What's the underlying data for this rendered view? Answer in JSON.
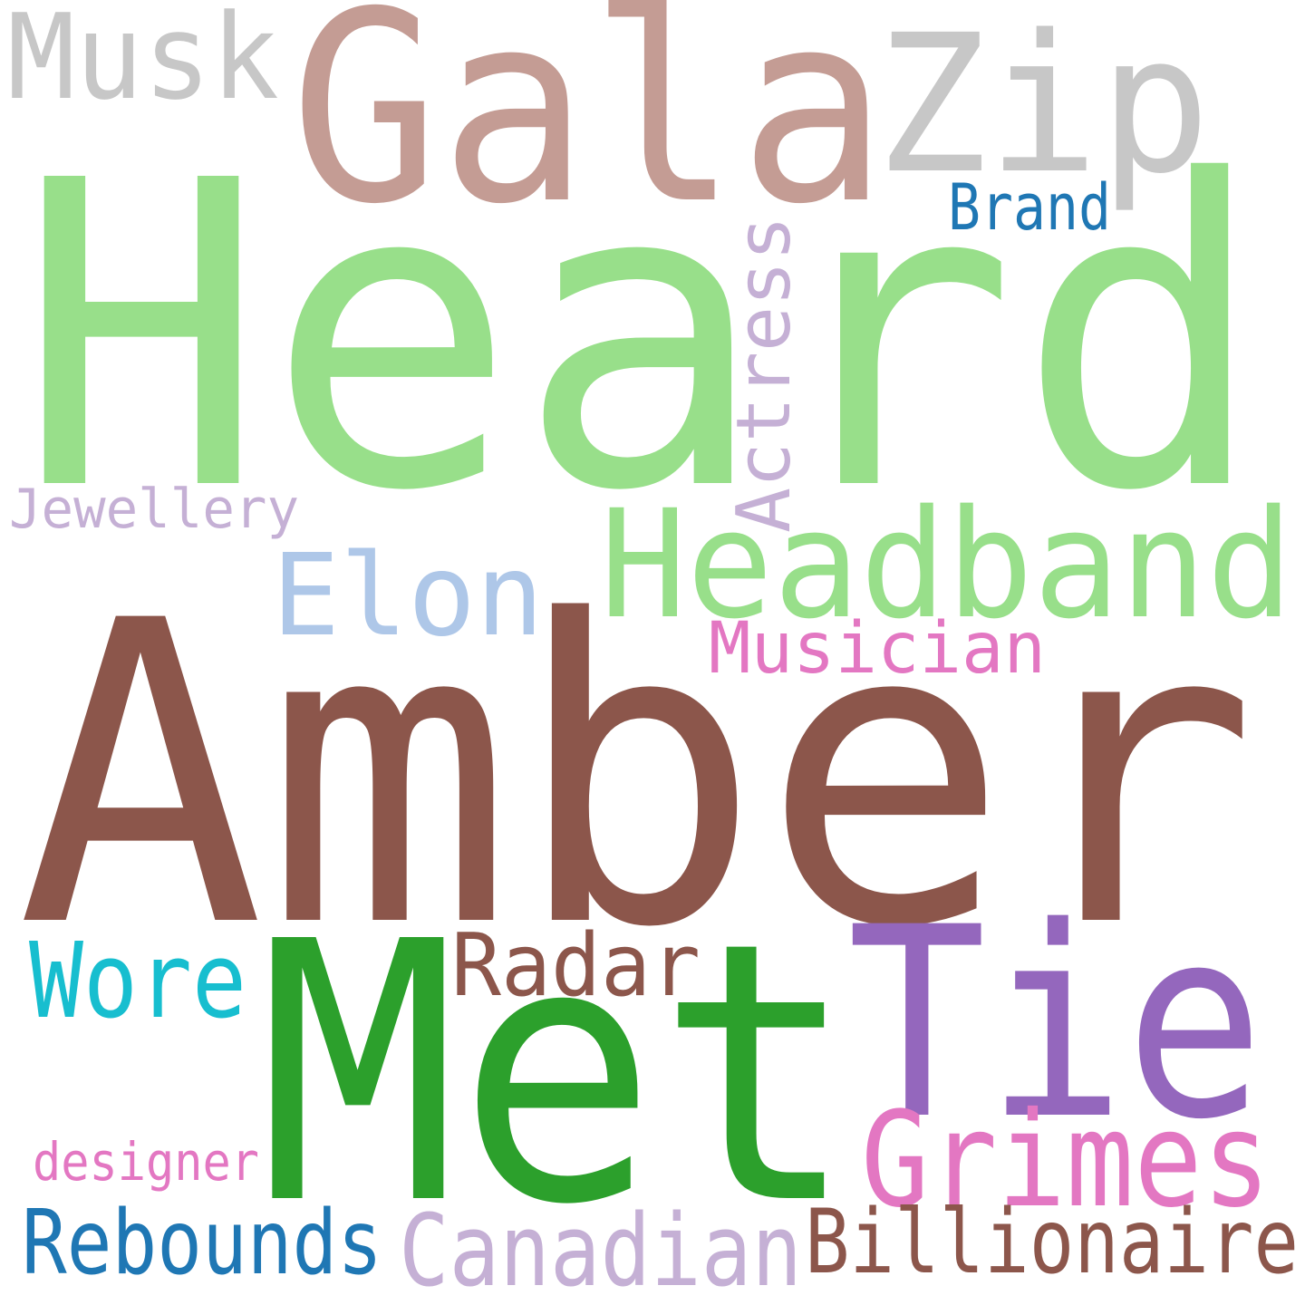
{
  "words": [
    {
      "key": "heard",
      "text": "Heard",
      "color": "#98df8a"
    },
    {
      "key": "amber",
      "text": "Amber",
      "color": "#8c564b"
    },
    {
      "key": "gala",
      "text": "Gala",
      "color": "#c49c94"
    },
    {
      "key": "zip",
      "text": "Zip",
      "color": "#c7c7c7"
    },
    {
      "key": "musk",
      "text": "Musk",
      "color": "#c7c7c7"
    },
    {
      "key": "brand",
      "text": "Brand",
      "color": "#1f77b4"
    },
    {
      "key": "actress",
      "text": "Actress",
      "color": "#c5b0d5"
    },
    {
      "key": "jewellery",
      "text": "Jewellery",
      "color": "#c5b0d5"
    },
    {
      "key": "headband",
      "text": "Headband",
      "color": "#98df8a"
    },
    {
      "key": "elon",
      "text": "Elon",
      "color": "#aec7e8"
    },
    {
      "key": "musician",
      "text": "Musician",
      "color": "#e377c2"
    },
    {
      "key": "met",
      "text": "Met",
      "color": "#2ca02c"
    },
    {
      "key": "tie",
      "text": "Tie",
      "color": "#9467bd"
    },
    {
      "key": "radar",
      "text": "Radar",
      "color": "#8c564b"
    },
    {
      "key": "wore",
      "text": "Wore",
      "color": "#17becf"
    },
    {
      "key": "grimes",
      "text": "Grimes",
      "color": "#e377c2"
    },
    {
      "key": "designer",
      "text": "designer",
      "color": "#e377c2"
    },
    {
      "key": "rebounds",
      "text": "Rebounds",
      "color": "#1f77b4"
    },
    {
      "key": "canadian",
      "text": "Canadian",
      "color": "#c5b0d5"
    },
    {
      "key": "billionaire",
      "text": "Billionaire",
      "color": "#8c564b"
    }
  ]
}
